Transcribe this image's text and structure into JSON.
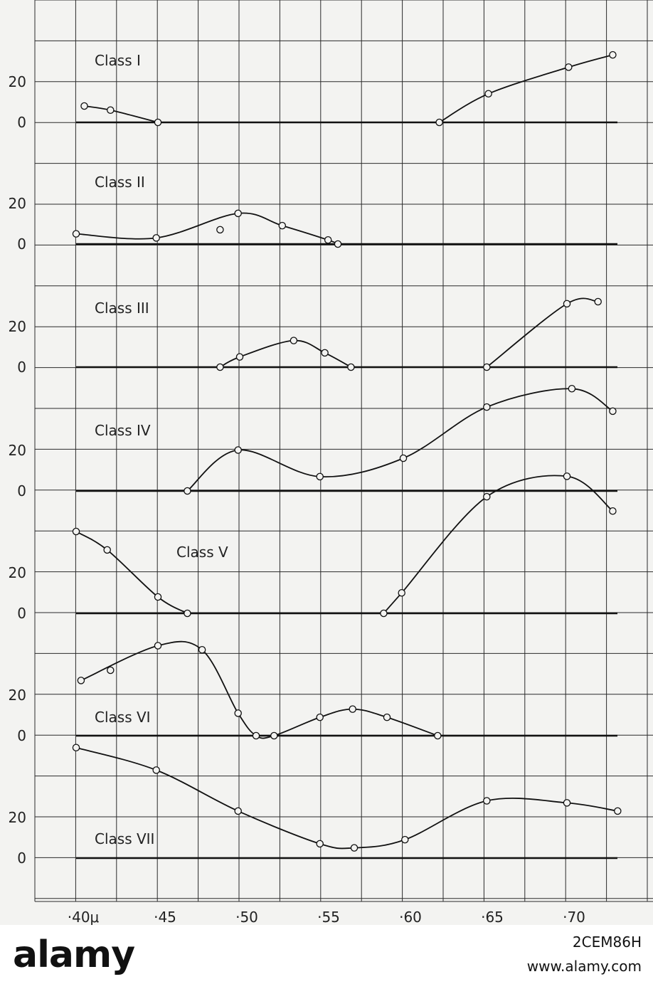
{
  "chart_data": {
    "type": "line",
    "x_ticks": [
      "·40μ",
      "·45",
      "·50",
      "·55",
      "·60",
      "·65",
      "·70"
    ],
    "x_range": [
      0.4,
      0.73
    ],
    "y_ticks": [
      "20",
      "0"
    ],
    "panels": [
      {
        "name": "Class I",
        "segments": [
          [
            [
              0.405,
              8
            ],
            [
              0.421,
              6
            ],
            [
              0.45,
              0
            ]
          ],
          [
            [
              0.622,
              0
            ],
            [
              0.652,
              14
            ],
            [
              0.701,
              27
            ],
            [
              0.728,
              33
            ]
          ]
        ]
      },
      {
        "name": "Class II",
        "segments": [
          [
            [
              0.4,
              5
            ],
            [
              0.449,
              3
            ],
            [
              0.499,
              15
            ],
            [
              0.526,
              9
            ],
            [
              0.554,
              2
            ],
            [
              0.56,
              0
            ]
          ]
        ],
        "scatter": [
          [
            0.488,
            7
          ]
        ]
      },
      {
        "name": "Class III",
        "segments": [
          [
            [
              0.488,
              0
            ],
            [
              0.5,
              5
            ],
            [
              0.533,
              13
            ],
            [
              0.552,
              7
            ],
            [
              0.568,
              0
            ]
          ],
          [
            [
              0.651,
              0
            ],
            [
              0.7,
              31
            ],
            [
              0.719,
              32
            ]
          ]
        ]
      },
      {
        "name": "Class IV",
        "segments": [
          [
            [
              0.468,
              0
            ],
            [
              0.499,
              20
            ],
            [
              0.549,
              7
            ],
            [
              0.6,
              16
            ],
            [
              0.651,
              41
            ],
            [
              0.703,
              50
            ],
            [
              0.728,
              39
            ]
          ]
        ]
      },
      {
        "name": "Class V",
        "segments": [
          [
            [
              0.4,
              40
            ],
            [
              0.419,
              31
            ],
            [
              0.45,
              8
            ],
            [
              0.468,
              0
            ]
          ],
          [
            [
              0.588,
              0
            ],
            [
              0.599,
              10
            ],
            [
              0.651,
              57
            ],
            [
              0.7,
              67
            ],
            [
              0.728,
              50
            ]
          ]
        ]
      },
      {
        "name": "Class VI",
        "segments": [
          [
            [
              0.403,
              27
            ],
            [
              0.45,
              44
            ],
            [
              0.477,
              42
            ],
            [
              0.499,
              11
            ],
            [
              0.51,
              0
            ],
            [
              0.521,
              0
            ],
            [
              0.549,
              9
            ],
            [
              0.569,
              13
            ],
            [
              0.59,
              9
            ],
            [
              0.621,
              0
            ]
          ]
        ],
        "scatter": [
          [
            0.421,
            32
          ]
        ]
      },
      {
        "name": "Class VII",
        "segments": [
          [
            [
              0.4,
              54
            ],
            [
              0.449,
              43
            ],
            [
              0.499,
              23
            ],
            [
              0.549,
              7
            ],
            [
              0.57,
              5
            ],
            [
              0.601,
              9
            ],
            [
              0.651,
              28
            ],
            [
              0.7,
              27
            ],
            [
              0.731,
              23
            ]
          ]
        ]
      }
    ],
    "grid": true
  },
  "watermark": {
    "logo": "alamy",
    "image_id": "2CEM86H",
    "url": "www.alamy.com"
  }
}
